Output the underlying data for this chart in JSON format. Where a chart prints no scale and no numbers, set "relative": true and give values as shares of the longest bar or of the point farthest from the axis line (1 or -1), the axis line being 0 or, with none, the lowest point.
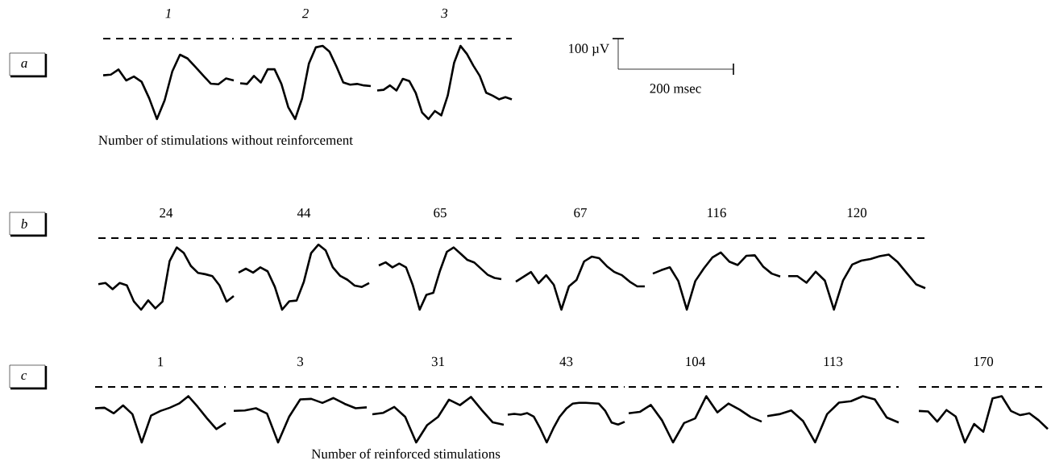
{
  "chart_data": [
    {
      "type": "line",
      "title": "1",
      "annotations": [
        "a"
      ],
      "xlabel": "Number of stimulations without reinforcement",
      "relative": true,
      "color": "#000000",
      "ref_lines": [
        {
          "axis": "y",
          "value": 1.25,
          "line_style": "dashed"
        }
      ],
      "categories": [
        null,
        null,
        null,
        null,
        null,
        null,
        null,
        null,
        null,
        null,
        null,
        null,
        null,
        null,
        null,
        null,
        null,
        null
      ],
      "values": [
        0.68,
        0.69,
        0.77,
        0.6,
        0.66,
        0.58,
        0.32,
        0,
        0.29,
        0.74,
        1,
        0.94,
        0.81,
        0.68,
        0.55,
        0.54,
        0.63,
        0.6
      ]
    },
    {
      "type": "line",
      "title": "2",
      "relative": true,
      "color": "#000000",
      "ref_lines": [
        {
          "axis": "y",
          "value": 1.1,
          "line_style": "dashed"
        }
      ],
      "categories": [
        null,
        null,
        null,
        null,
        null,
        null,
        null,
        null,
        null,
        null,
        null,
        null,
        null,
        null,
        null,
        null,
        null,
        null,
        null,
        null
      ],
      "values": [
        0.49,
        0.48,
        0.59,
        0.5,
        0.68,
        0.68,
        0.48,
        0.16,
        0,
        0.28,
        0.76,
        0.98,
        1,
        0.92,
        0.72,
        0.5,
        0.47,
        0.48,
        0.46,
        0.45
      ]
    },
    {
      "type": "line",
      "title": "3",
      "relative": true,
      "color": "#000000",
      "ref_lines": [
        {
          "axis": "y",
          "value": 1.1,
          "line_style": "dashed"
        }
      ],
      "categories": [
        null,
        null,
        null,
        null,
        null,
        null,
        null,
        null,
        null,
        null,
        null,
        null,
        null,
        null,
        null,
        null,
        null,
        null,
        null,
        null,
        null,
        null
      ],
      "values": [
        0.39,
        0.4,
        0.46,
        0.39,
        0.55,
        0.52,
        0.36,
        0.09,
        0,
        0.11,
        0.05,
        0.32,
        0.77,
        1,
        0.89,
        0.73,
        0.59,
        0.36,
        0.32,
        0.27,
        0.3,
        0.27
      ]
    },
    {
      "type": "line",
      "title": "24",
      "annotations": [
        "b"
      ],
      "relative": true,
      "color": "#000000",
      "ref_lines": [
        {
          "axis": "y",
          "value": 1.15,
          "line_style": "dashed"
        }
      ],
      "categories": [
        null,
        null,
        null,
        null,
        null,
        null,
        null,
        null,
        null,
        null,
        null,
        null,
        null,
        null,
        null,
        null,
        null,
        null,
        null,
        null
      ],
      "values": [
        0.41,
        0.43,
        0.33,
        0.43,
        0.39,
        0.13,
        0,
        0.15,
        0.02,
        0.13,
        0.78,
        1,
        0.91,
        0.7,
        0.59,
        0.57,
        0.54,
        0.39,
        0.13,
        0.22
      ]
    },
    {
      "type": "line",
      "title": "44",
      "relative": true,
      "color": "#000000",
      "ref_lines": [
        {
          "axis": "y",
          "value": 1.1,
          "line_style": "dashed"
        }
      ],
      "categories": [
        null,
        null,
        null,
        null,
        null,
        null,
        null,
        null,
        null,
        null,
        null,
        null,
        null,
        null,
        null,
        null,
        null,
        null,
        null
      ],
      "values": [
        0.57,
        0.63,
        0.57,
        0.65,
        0.59,
        0.35,
        0,
        0.13,
        0.14,
        0.43,
        0.87,
        1,
        0.91,
        0.65,
        0.52,
        0.46,
        0.37,
        0.35,
        0.41
      ]
    },
    {
      "type": "line",
      "title": "65",
      "relative": true,
      "color": "#000000",
      "ref_lines": [
        {
          "axis": "y",
          "value": 1.15,
          "line_style": "dashed"
        }
      ],
      "categories": [
        null,
        null,
        null,
        null,
        null,
        null,
        null,
        null,
        null,
        null,
        null,
        null,
        null,
        null,
        null,
        null,
        null,
        null,
        null
      ],
      "values": [
        0.71,
        0.76,
        0.68,
        0.74,
        0.68,
        0.39,
        0,
        0.24,
        0.27,
        0.63,
        0.93,
        1,
        0.9,
        0.8,
        0.76,
        0.66,
        0.56,
        0.51,
        0.49
      ]
    },
    {
      "type": "line",
      "title": "67",
      "relative": true,
      "color": "#000000",
      "ref_lines": [
        {
          "axis": "y",
          "value": 1.35,
          "line_style": "dashed"
        }
      ],
      "categories": [
        null,
        null,
        null,
        null,
        null,
        null,
        null,
        null,
        null,
        null,
        null,
        null,
        null,
        null,
        null,
        null,
        null,
        null
      ],
      "values": [
        0.53,
        0.62,
        0.71,
        0.5,
        0.65,
        0.47,
        0,
        0.44,
        0.56,
        0.91,
        1,
        0.97,
        0.82,
        0.71,
        0.65,
        0.53,
        0.44,
        0.44
      ]
    },
    {
      "type": "line",
      "title": "116",
      "relative": true,
      "color": "#000000",
      "ref_lines": [
        {
          "axis": "y",
          "value": 1.25,
          "line_style": "dashed"
        }
      ],
      "categories": [
        null,
        null,
        null,
        null,
        null,
        null,
        null,
        null,
        null,
        null,
        null,
        null,
        null,
        null,
        null,
        null
      ],
      "values": [
        0.63,
        0.69,
        0.74,
        0.5,
        0,
        0.5,
        0.72,
        0.91,
        1,
        0.84,
        0.78,
        0.94,
        0.95,
        0.75,
        0.63,
        0.58
      ]
    },
    {
      "type": "line",
      "title": "120",
      "relative": true,
      "color": "#000000",
      "ref_lines": [
        {
          "axis": "y",
          "value": 1.3,
          "line_style": "dashed"
        }
      ],
      "categories": [
        null,
        null,
        null,
        null,
        null,
        null,
        null,
        null,
        null,
        null,
        null,
        null,
        null,
        null,
        null,
        null
      ],
      "values": [
        0.61,
        0.61,
        0.49,
        0.69,
        0.53,
        0,
        0.53,
        0.82,
        0.89,
        0.92,
        0.97,
        1,
        0.86,
        0.66,
        0.46,
        0.39
      ]
    },
    {
      "type": "line",
      "title": "1",
      "annotations": [
        "c"
      ],
      "relative": true,
      "color": "#000000",
      "ref_lines": [
        {
          "axis": "y",
          "value": 1.2,
          "line_style": "dashed"
        }
      ],
      "categories": [
        null,
        null,
        null,
        null,
        null,
        null,
        null,
        null,
        null,
        null,
        null,
        null,
        null,
        null,
        null
      ],
      "values": [
        0.74,
        0.75,
        0.63,
        0.8,
        0.61,
        0,
        0.58,
        0.68,
        0.75,
        0.84,
        1,
        0.77,
        0.52,
        0.29,
        0.42
      ]
    },
    {
      "type": "line",
      "title": "3",
      "relative": true,
      "color": "#000000",
      "ref_lines": [
        {
          "axis": "y",
          "value": 1.25,
          "line_style": "dashed"
        }
      ],
      "categories": [
        null,
        null,
        null,
        null,
        null,
        null,
        null,
        null,
        null,
        null,
        null,
        null,
        null
      ],
      "values": [
        0.71,
        0.72,
        0.77,
        0.65,
        0,
        0.58,
        0.97,
        0.98,
        0.89,
        1,
        0.87,
        0.77,
        0.79
      ]
    },
    {
      "type": "line",
      "title": "31",
      "xlabel": "Number of reinforced stimulations",
      "relative": true,
      "color": "#000000",
      "ref_lines": [
        {
          "axis": "y",
          "value": 1.22,
          "line_style": "dashed"
        }
      ],
      "categories": [
        null,
        null,
        null,
        null,
        null,
        null,
        null,
        null,
        null,
        null,
        null,
        null,
        null
      ],
      "values": [
        0.62,
        0.65,
        0.78,
        0.56,
        0,
        0.38,
        0.56,
        0.94,
        0.82,
        1,
        0.71,
        0.44,
        0.39
      ]
    },
    {
      "type": "line",
      "title": "43",
      "relative": true,
      "color": "#000000",
      "ref_lines": [
        {
          "axis": "y",
          "value": 1.4,
          "line_style": "dashed"
        }
      ],
      "categories": [
        null,
        null,
        null,
        null,
        null,
        null,
        null,
        null,
        null,
        null,
        null,
        null,
        null,
        null,
        null,
        null,
        null,
        null,
        null
      ],
      "values": [
        0.7,
        0.72,
        0.7,
        0.74,
        0.65,
        0.35,
        0,
        0.35,
        0.65,
        0.85,
        0.98,
        1,
        1,
        0.99,
        0.98,
        0.8,
        0.5,
        0.45,
        0.52
      ]
    },
    {
      "type": "line",
      "title": "104",
      "relative": true,
      "color": "#000000",
      "ref_lines": [
        {
          "axis": "y",
          "value": 1.2,
          "line_style": "dashed"
        }
      ],
      "categories": [
        null,
        null,
        null,
        null,
        null,
        null,
        null,
        null,
        null,
        null,
        null,
        null,
        null
      ],
      "values": [
        0.63,
        0.66,
        0.81,
        0.48,
        0,
        0.42,
        0.52,
        1,
        0.65,
        0.84,
        0.71,
        0.55,
        0.45
      ]
    },
    {
      "type": "line",
      "title": "113",
      "relative": true,
      "color": "#000000",
      "ref_lines": [
        {
          "axis": "y",
          "value": 1.2,
          "line_style": "dashed"
        }
      ],
      "categories": [
        null,
        null,
        null,
        null,
        null,
        null,
        null,
        null,
        null,
        null,
        null,
        null
      ],
      "values": [
        0.57,
        0.61,
        0.69,
        0.46,
        0,
        0.61,
        0.86,
        0.89,
        1,
        0.93,
        0.54,
        0.43
      ]
    },
    {
      "type": "line",
      "title": "170",
      "relative": true,
      "color": "#000000",
      "ref_lines": [
        {
          "axis": "y",
          "value": 1.2,
          "line_style": "dashed"
        }
      ],
      "categories": [
        null,
        null,
        null,
        null,
        null,
        null,
        null,
        null,
        null,
        null,
        null,
        null,
        null,
        null,
        null
      ],
      "values": [
        0.68,
        0.67,
        0.45,
        0.7,
        0.56,
        0,
        0.4,
        0.23,
        0.95,
        1,
        0.68,
        0.59,
        0.63,
        0.48,
        0.29
      ]
    },
    {
      "type": "other",
      "annotations": [
        "100 µV",
        "200 msec"
      ]
    }
  ]
}
